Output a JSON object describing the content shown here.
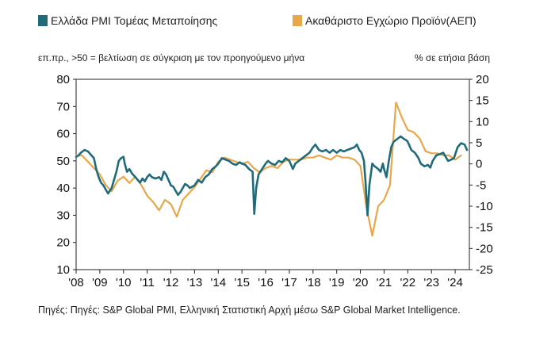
{
  "chart_data": {
    "type": "line",
    "legend": [
      {
        "name": "Ελλάδα PMI Τομέας Μεταποίησης",
        "color": "#1f6b7a"
      },
      {
        "name": "Ακαθάριστο Εγχώριο Προϊόν(ΑΕΠ)",
        "color": "#e8a84a"
      }
    ],
    "left_axis_note": "επ.πρ., >50 = βελτίωση σε σύγκριση με τον προηγούμενο μήνα",
    "right_axis_note": "% σε ετήσια βάση",
    "x_ticks": [
      "'08",
      "'09",
      "'10",
      "'11",
      "'12",
      "'13",
      "'14",
      "'15",
      "'16",
      "'17",
      "'18",
      "'19",
      "'20",
      "'21",
      "'22",
      "'23",
      "'24"
    ],
    "y_left": {
      "min": 10,
      "max": 80,
      "ticks": [
        80,
        70,
        60,
        50,
        40,
        30,
        20,
        10
      ]
    },
    "y_right": {
      "min": -25,
      "max": 20,
      "ticks": [
        20,
        15,
        10,
        5,
        0,
        -5,
        -10,
        -15,
        -20,
        -25
      ]
    },
    "x_range": [
      2008.0,
      2024.6
    ],
    "series": [
      {
        "name": "Ελλάδα PMI Τομέας Μεταποίησης",
        "axis": "left",
        "color": "#1f6b7a",
        "points": [
          [
            2008.0,
            51.5
          ],
          [
            2008.1,
            52
          ],
          [
            2008.2,
            53
          ],
          [
            2008.35,
            54
          ],
          [
            2008.5,
            53.5
          ],
          [
            2008.65,
            52
          ],
          [
            2008.75,
            51
          ],
          [
            2008.85,
            47
          ],
          [
            2008.95,
            44
          ],
          [
            2009.05,
            42
          ],
          [
            2009.15,
            41
          ],
          [
            2009.25,
            39.5
          ],
          [
            2009.35,
            38
          ],
          [
            2009.5,
            40
          ],
          [
            2009.6,
            43
          ],
          [
            2009.7,
            46
          ],
          [
            2009.8,
            50
          ],
          [
            2009.9,
            51
          ],
          [
            2010.0,
            51.5
          ],
          [
            2010.05,
            49
          ],
          [
            2010.15,
            46
          ],
          [
            2010.25,
            47
          ],
          [
            2010.35,
            45.5
          ],
          [
            2010.5,
            44
          ],
          [
            2010.6,
            43
          ],
          [
            2010.7,
            42
          ],
          [
            2010.8,
            43.5
          ],
          [
            2010.9,
            42.5
          ],
          [
            2011.0,
            44
          ],
          [
            2011.1,
            45
          ],
          [
            2011.2,
            44
          ],
          [
            2011.35,
            43.5
          ],
          [
            2011.5,
            44
          ],
          [
            2011.6,
            43
          ],
          [
            2011.7,
            46
          ],
          [
            2011.8,
            45
          ],
          [
            2011.9,
            43
          ],
          [
            2012.0,
            41
          ],
          [
            2012.1,
            40.5
          ],
          [
            2012.2,
            39
          ],
          [
            2012.3,
            37.5
          ],
          [
            2012.4,
            38.5
          ],
          [
            2012.5,
            40
          ],
          [
            2012.6,
            41.5
          ],
          [
            2012.7,
            41
          ],
          [
            2012.8,
            40
          ],
          [
            2012.9,
            40.5
          ],
          [
            2013.0,
            41
          ],
          [
            2013.15,
            43
          ],
          [
            2013.3,
            42
          ],
          [
            2013.45,
            44
          ],
          [
            2013.6,
            45
          ],
          [
            2013.75,
            47
          ],
          [
            2013.9,
            48
          ],
          [
            2014.0,
            49
          ],
          [
            2014.15,
            51
          ],
          [
            2014.3,
            50.5
          ],
          [
            2014.45,
            50
          ],
          [
            2014.6,
            49
          ],
          [
            2014.75,
            48.5
          ],
          [
            2014.9,
            49.5
          ],
          [
            2015.0,
            49
          ],
          [
            2015.15,
            48.5
          ],
          [
            2015.3,
            47
          ],
          [
            2015.45,
            46
          ],
          [
            2015.52,
            30.5
          ],
          [
            2015.6,
            40
          ],
          [
            2015.7,
            45
          ],
          [
            2015.85,
            47
          ],
          [
            2016.0,
            49
          ],
          [
            2016.1,
            50
          ],
          [
            2016.25,
            49
          ],
          [
            2016.4,
            48.5
          ],
          [
            2016.55,
            50
          ],
          [
            2016.7,
            49.5
          ],
          [
            2016.85,
            51
          ],
          [
            2017.0,
            50
          ],
          [
            2017.15,
            47
          ],
          [
            2017.25,
            49
          ],
          [
            2017.4,
            50
          ],
          [
            2017.55,
            51
          ],
          [
            2017.7,
            52
          ],
          [
            2017.85,
            53
          ],
          [
            2018.0,
            55
          ],
          [
            2018.1,
            56
          ],
          [
            2018.25,
            54
          ],
          [
            2018.4,
            53.5
          ],
          [
            2018.55,
            54
          ],
          [
            2018.7,
            53
          ],
          [
            2018.85,
            54
          ],
          [
            2019.0,
            53
          ],
          [
            2019.15,
            54
          ],
          [
            2019.3,
            53.5
          ],
          [
            2019.45,
            54
          ],
          [
            2019.6,
            54.5
          ],
          [
            2019.75,
            55
          ],
          [
            2019.85,
            56
          ],
          [
            2019.95,
            54
          ],
          [
            2020.05,
            53
          ],
          [
            2020.15,
            50
          ],
          [
            2020.22,
            42
          ],
          [
            2020.3,
            30
          ],
          [
            2020.38,
            41
          ],
          [
            2020.5,
            49
          ],
          [
            2020.6,
            48
          ],
          [
            2020.75,
            47
          ],
          [
            2020.85,
            46
          ],
          [
            2020.95,
            49
          ],
          [
            2021.0,
            47
          ],
          [
            2021.1,
            44
          ],
          [
            2021.2,
            50
          ],
          [
            2021.3,
            55
          ],
          [
            2021.4,
            57
          ],
          [
            2021.55,
            58
          ],
          [
            2021.7,
            59
          ],
          [
            2021.85,
            58
          ],
          [
            2021.95,
            57.5
          ],
          [
            2022.0,
            57
          ],
          [
            2022.15,
            54
          ],
          [
            2022.3,
            53
          ],
          [
            2022.45,
            51
          ],
          [
            2022.55,
            49
          ],
          [
            2022.7,
            48
          ],
          [
            2022.85,
            48.5
          ],
          [
            2022.95,
            47.5
          ],
          [
            2023.05,
            50
          ],
          [
            2023.2,
            52
          ],
          [
            2023.35,
            52.5
          ],
          [
            2023.5,
            53
          ],
          [
            2023.6,
            51.5
          ],
          [
            2023.7,
            50
          ],
          [
            2023.85,
            50.5
          ],
          [
            2023.95,
            51
          ],
          [
            2024.1,
            55
          ],
          [
            2024.25,
            56.5
          ],
          [
            2024.4,
            56
          ],
          [
            2024.5,
            54
          ]
        ]
      },
      {
        "name": "Ακαθάριστο Εγχώριο Προϊόν(ΑΕΠ)",
        "axis": "right",
        "color": "#e8a84a",
        "points": [
          [
            2008.0,
            2
          ],
          [
            2008.25,
            2
          ],
          [
            2008.5,
            0.5
          ],
          [
            2008.75,
            -1
          ],
          [
            2009.0,
            -2.5
          ],
          [
            2009.25,
            -5
          ],
          [
            2009.5,
            -6.5
          ],
          [
            2009.75,
            -4
          ],
          [
            2010.0,
            -3
          ],
          [
            2010.25,
            -4.5
          ],
          [
            2010.5,
            -3
          ],
          [
            2010.75,
            -5
          ],
          [
            2011.0,
            -7.5
          ],
          [
            2011.25,
            -9
          ],
          [
            2011.5,
            -11
          ],
          [
            2011.75,
            -8.5
          ],
          [
            2012.0,
            -9.5
          ],
          [
            2012.25,
            -12.5
          ],
          [
            2012.5,
            -8.5
          ],
          [
            2012.75,
            -7
          ],
          [
            2013.0,
            -5.5
          ],
          [
            2013.25,
            -3.5
          ],
          [
            2013.5,
            -1.5
          ],
          [
            2013.75,
            -2
          ],
          [
            2014.0,
            0.5
          ],
          [
            2014.25,
            1.5
          ],
          [
            2014.5,
            1
          ],
          [
            2014.75,
            0.5
          ],
          [
            2015.0,
            0
          ],
          [
            2015.25,
            0.5
          ],
          [
            2015.5,
            -1
          ],
          [
            2015.75,
            -2
          ],
          [
            2016.0,
            -1
          ],
          [
            2016.25,
            -0.5
          ],
          [
            2016.5,
            -1
          ],
          [
            2016.75,
            0.5
          ],
          [
            2017.0,
            1
          ],
          [
            2017.25,
            1
          ],
          [
            2017.5,
            1
          ],
          [
            2017.75,
            1.5
          ],
          [
            2018.0,
            1.5
          ],
          [
            2018.25,
            2
          ],
          [
            2018.5,
            1.5
          ],
          [
            2018.75,
            1
          ],
          [
            2019.0,
            2
          ],
          [
            2019.25,
            1.5
          ],
          [
            2019.5,
            1.5
          ],
          [
            2019.75,
            1
          ],
          [
            2020.0,
            -0.5
          ],
          [
            2020.25,
            -10
          ],
          [
            2020.5,
            -17
          ],
          [
            2020.75,
            -10
          ],
          [
            2021.0,
            -8.5
          ],
          [
            2021.25,
            -5
          ],
          [
            2021.5,
            14.5
          ],
          [
            2021.75,
            11
          ],
          [
            2022.0,
            8
          ],
          [
            2022.25,
            7.5
          ],
          [
            2022.5,
            6
          ],
          [
            2022.75,
            3
          ],
          [
            2023.0,
            2.5
          ],
          [
            2023.25,
            2.5
          ],
          [
            2023.5,
            2
          ],
          [
            2023.75,
            2
          ],
          [
            2024.0,
            1
          ],
          [
            2024.25,
            2
          ]
        ]
      }
    ]
  },
  "source_text": "Πηγές: Πηγές: S&P Global PMI, Ελληνική Στατιστική Αρχή μέσω S&P Global Market Intelligence."
}
